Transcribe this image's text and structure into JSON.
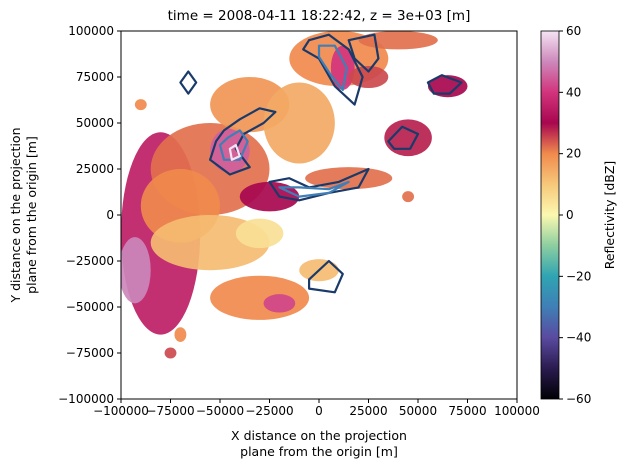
{
  "chart_data": {
    "type": "heatmap",
    "title": "time = 2008-04-11 18:22:42, z = 3e+03 [m]",
    "xlabel_lines": [
      "X distance on the projection",
      "plane from the origin [m]"
    ],
    "ylabel_lines": [
      "Y distance on the projection",
      "plane from the origin [m]"
    ],
    "xlim": [
      -100000,
      100000
    ],
    "ylim": [
      -100000,
      100000
    ],
    "x_ticks": [
      -100000,
      -75000,
      -50000,
      -25000,
      0,
      25000,
      50000,
      75000,
      100000
    ],
    "y_ticks": [
      -100000,
      -75000,
      -50000,
      -25000,
      0,
      25000,
      50000,
      75000,
      100000
    ],
    "colorbar": {
      "label": "Reflectivity [dBZ]",
      "range": [
        -60,
        60
      ],
      "ticks": [
        -60,
        -40,
        -20,
        0,
        20,
        40,
        60
      ],
      "colormap": "Spectral_r-like",
      "stops": [
        {
          "v": -60,
          "c": "#000004"
        },
        {
          "v": -50,
          "c": "#2b1b4f"
        },
        {
          "v": -40,
          "c": "#5a4aa0"
        },
        {
          "v": -30,
          "c": "#3f7fb6"
        },
        {
          "v": -20,
          "c": "#2fa4b2"
        },
        {
          "v": -10,
          "c": "#8ccfa0"
        },
        {
          "v": 0,
          "c": "#fbf8b0"
        },
        {
          "v": 10,
          "c": "#f6c87a"
        },
        {
          "v": 20,
          "c": "#f08a4d"
        },
        {
          "v": 30,
          "c": "#a8074f"
        },
        {
          "v": 40,
          "c": "#d2347c"
        },
        {
          "v": 50,
          "c": "#cc88bb"
        },
        {
          "v": 60,
          "c": "#f5e4f3"
        }
      ]
    },
    "reflectivity_regions": [
      {
        "cx": -80000,
        "cy": -10000,
        "rx": 20000,
        "ry": 55000,
        "value": 35
      },
      {
        "cx": -93000,
        "cy": -30000,
        "rx": 8000,
        "ry": 18000,
        "value": 50
      },
      {
        "cx": -55000,
        "cy": 25000,
        "rx": 30000,
        "ry": 25000,
        "value": 22
      },
      {
        "cx": -45000,
        "cy": 35000,
        "rx": 10000,
        "ry": 12000,
        "value": 45
      },
      {
        "cx": -70000,
        "cy": 5000,
        "rx": 20000,
        "ry": 20000,
        "value": 20
      },
      {
        "cx": -55000,
        "cy": -15000,
        "rx": 30000,
        "ry": 15000,
        "value": 12
      },
      {
        "cx": -35000,
        "cy": 60000,
        "rx": 20000,
        "ry": 15000,
        "value": 18
      },
      {
        "cx": -10000,
        "cy": 50000,
        "rx": 18000,
        "ry": 22000,
        "value": 15
      },
      {
        "cx": 10000,
        "cy": 85000,
        "rx": 25000,
        "ry": 15000,
        "value": 20
      },
      {
        "cx": 12000,
        "cy": 80000,
        "rx": 6000,
        "ry": 12000,
        "value": 40
      },
      {
        "cx": -25000,
        "cy": 10000,
        "rx": 15000,
        "ry": 8000,
        "value": 30
      },
      {
        "cx": 15000,
        "cy": 20000,
        "rx": 22000,
        "ry": 6000,
        "value": 22
      },
      {
        "cx": 45000,
        "cy": 42000,
        "rx": 12000,
        "ry": 10000,
        "value": 28
      },
      {
        "cx": -30000,
        "cy": -45000,
        "rx": 25000,
        "ry": 12000,
        "value": 20
      },
      {
        "cx": -20000,
        "cy": -48000,
        "rx": 8000,
        "ry": 5000,
        "value": 42
      },
      {
        "cx": 0,
        "cy": -30000,
        "rx": 10000,
        "ry": 6000,
        "value": 12
      },
      {
        "cx": 65000,
        "cy": 70000,
        "rx": 10000,
        "ry": 6000,
        "value": 30
      },
      {
        "cx": 40000,
        "cy": 95000,
        "rx": 20000,
        "ry": 5000,
        "value": 22
      },
      {
        "cx": 25000,
        "cy": 75000,
        "rx": 10000,
        "ry": 6000,
        "value": 25
      },
      {
        "cx": -70000,
        "cy": -65000,
        "rx": 3000,
        "ry": 4000,
        "value": 20
      },
      {
        "cx": -75000,
        "cy": -75000,
        "rx": 3000,
        "ry": 3000,
        "value": 25
      },
      {
        "cx": 45000,
        "cy": 10000,
        "rx": 3000,
        "ry": 3000,
        "value": 22
      },
      {
        "cx": -90000,
        "cy": 60000,
        "rx": 3000,
        "ry": 3000,
        "value": 20
      },
      {
        "cx": -30000,
        "cy": -10000,
        "rx": 12000,
        "ry": 8000,
        "value": 5
      }
    ],
    "contours": [
      {
        "color": "#1a3a6a",
        "points": [
          [
            -48000,
            46000
          ],
          [
            -40000,
            52000
          ],
          [
            -30000,
            58000
          ],
          [
            -22000,
            56000
          ],
          [
            -28000,
            50000
          ],
          [
            -38000,
            44000
          ],
          [
            -42000,
            36000
          ],
          [
            -35000,
            26000
          ],
          [
            -45000,
            22000
          ],
          [
            -55000,
            30000
          ],
          [
            -52000,
            40000
          ],
          [
            -48000,
            46000
          ]
        ]
      },
      {
        "color": "#3f7fb6",
        "points": [
          [
            -46000,
            42000
          ],
          [
            -40000,
            46000
          ],
          [
            -36000,
            40000
          ],
          [
            -40000,
            30000
          ],
          [
            -48000,
            30000
          ],
          [
            -50000,
            38000
          ],
          [
            -46000,
            42000
          ]
        ]
      },
      {
        "color": "#f5e4f3",
        "points": [
          [
            -45000,
            36000
          ],
          [
            -42000,
            38000
          ],
          [
            -40000,
            32000
          ],
          [
            -44000,
            30000
          ],
          [
            -45000,
            36000
          ]
        ]
      },
      {
        "color": "#1a3a6a",
        "points": [
          [
            -5000,
            95000
          ],
          [
            5000,
            98000
          ],
          [
            15000,
            90000
          ],
          [
            22000,
            75000
          ],
          [
            18000,
            60000
          ],
          [
            8000,
            70000
          ],
          [
            0,
            85000
          ],
          [
            -8000,
            90000
          ],
          [
            -5000,
            95000
          ]
        ]
      },
      {
        "color": "#3f7fb6",
        "points": [
          [
            0,
            92000
          ],
          [
            8000,
            92000
          ],
          [
            14000,
            80000
          ],
          [
            12000,
            68000
          ],
          [
            6000,
            76000
          ],
          [
            0,
            86000
          ],
          [
            0,
            92000
          ]
        ]
      },
      {
        "color": "#1a3a6a",
        "points": [
          [
            15000,
            95000
          ],
          [
            28000,
            98000
          ],
          [
            30000,
            85000
          ],
          [
            25000,
            78000
          ],
          [
            18000,
            85000
          ],
          [
            15000,
            95000
          ]
        ]
      },
      {
        "color": "#1a3a6a",
        "points": [
          [
            -25000,
            18000
          ],
          [
            -15000,
            20000
          ],
          [
            -5000,
            15000
          ],
          [
            10000,
            18000
          ],
          [
            25000,
            25000
          ],
          [
            20000,
            15000
          ],
          [
            5000,
            12000
          ],
          [
            -10000,
            8000
          ],
          [
            -20000,
            10000
          ],
          [
            -25000,
            18000
          ]
        ]
      },
      {
        "color": "#3f7fb6",
        "points": [
          [
            -20000,
            15000
          ],
          [
            -10000,
            15000
          ],
          [
            5000,
            14000
          ],
          [
            15000,
            18000
          ],
          [
            5000,
            12000
          ],
          [
            -10000,
            10000
          ],
          [
            -20000,
            15000
          ]
        ]
      },
      {
        "color": "#1a3a6a",
        "points": [
          [
            -5000,
            -35000
          ],
          [
            5000,
            -25000
          ],
          [
            12000,
            -32000
          ],
          [
            8000,
            -42000
          ],
          [
            -5000,
            -40000
          ],
          [
            -5000,
            -35000
          ]
        ]
      },
      {
        "color": "#1a3a6a",
        "points": [
          [
            35000,
            40000
          ],
          [
            42000,
            48000
          ],
          [
            50000,
            44000
          ],
          [
            46000,
            36000
          ],
          [
            38000,
            36000
          ],
          [
            35000,
            40000
          ]
        ]
      },
      {
        "color": "#1a3a6a",
        "points": [
          [
            55000,
            72000
          ],
          [
            62000,
            76000
          ],
          [
            72000,
            72000
          ],
          [
            66000,
            66000
          ],
          [
            58000,
            66000
          ],
          [
            55000,
            72000
          ]
        ]
      },
      {
        "color": "#1a3a6a",
        "points": [
          [
            -70000,
            72000
          ],
          [
            -66000,
            78000
          ],
          [
            -62000,
            72000
          ],
          [
            -66000,
            66000
          ],
          [
            -70000,
            72000
          ]
        ]
      }
    ]
  }
}
